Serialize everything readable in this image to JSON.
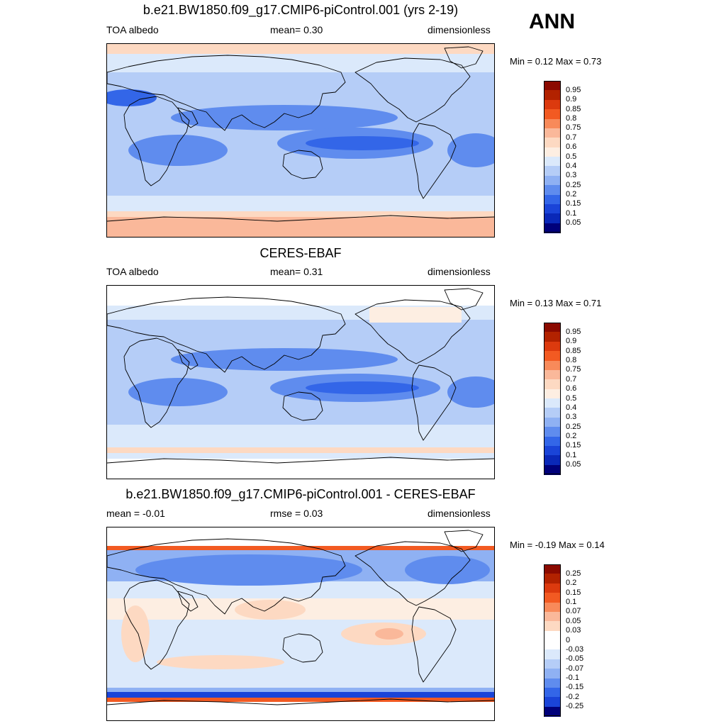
{
  "season": "ANN",
  "panels": [
    {
      "title": "b.e21.BW1850.f09_g17.CMIP6-piControl.001 (yrs 2-19)",
      "left_label": "TOA albedo",
      "center_label": "mean=   0.30",
      "right_label": "dimensionless",
      "minmax": "Min =   0.12 Max =   0.73",
      "colorbar_levels": [
        "0.95",
        "0.9",
        "0.85",
        "0.8",
        "0.75",
        "0.7",
        "0.6",
        "0.5",
        "0.4",
        "0.3",
        "0.25",
        "0.2",
        "0.15",
        "0.1",
        "0.05"
      ],
      "colorbar_colors": [
        "#8b0a00",
        "#b22200",
        "#dc3a0e",
        "#f25a22",
        "#f88a5a",
        "#fab89a",
        "#fdd9c2",
        "#fdeee2",
        "#dbe9fb",
        "#b5cdf7",
        "#8fb1f3",
        "#5f8cee",
        "#3366e8",
        "#1a44d8",
        "#0a28b8",
        "#00007a"
      ],
      "map_type": "model"
    },
    {
      "title": "CERES-EBAF",
      "left_label": "TOA albedo",
      "center_label": "mean=   0.31",
      "right_label": "dimensionless",
      "minmax": "Min =   0.13 Max =   0.71",
      "colorbar_levels": [
        "0.95",
        "0.9",
        "0.85",
        "0.8",
        "0.75",
        "0.7",
        "0.6",
        "0.5",
        "0.4",
        "0.3",
        "0.25",
        "0.2",
        "0.15",
        "0.1",
        "0.05"
      ],
      "colorbar_colors": [
        "#8b0a00",
        "#b22200",
        "#dc3a0e",
        "#f25a22",
        "#f88a5a",
        "#fab89a",
        "#fdd9c2",
        "#fdeee2",
        "#dbe9fb",
        "#b5cdf7",
        "#8fb1f3",
        "#5f8cee",
        "#3366e8",
        "#1a44d8",
        "#0a28b8",
        "#00007a"
      ],
      "map_type": "obs"
    },
    {
      "title": "b.e21.BW1850.f09_g17.CMIP6-piControl.001 - CERES-EBAF",
      "left_label": "mean =  -0.01",
      "center_label": "rmse =   0.03",
      "right_label": "dimensionless",
      "minmax": "Min =  -0.19 Max =   0.14",
      "colorbar_levels": [
        "0.25",
        "0.2",
        "0.15",
        "0.1",
        "0.07",
        "0.05",
        "0.03",
        "0",
        "-0.03",
        "-0.05",
        "-0.07",
        "-0.1",
        "-0.15",
        "-0.2",
        "-0.25"
      ],
      "colorbar_colors": [
        "#8b0a00",
        "#b22200",
        "#dc3a0e",
        "#f25a22",
        "#f88a5a",
        "#fab89a",
        "#fdd9c2",
        "#ffffff",
        "#ffffff",
        "#dbe9fb",
        "#b5cdf7",
        "#8fb1f3",
        "#5f8cee",
        "#3366e8",
        "#1a44d8",
        "#00007a"
      ],
      "map_type": "diff"
    }
  ]
}
